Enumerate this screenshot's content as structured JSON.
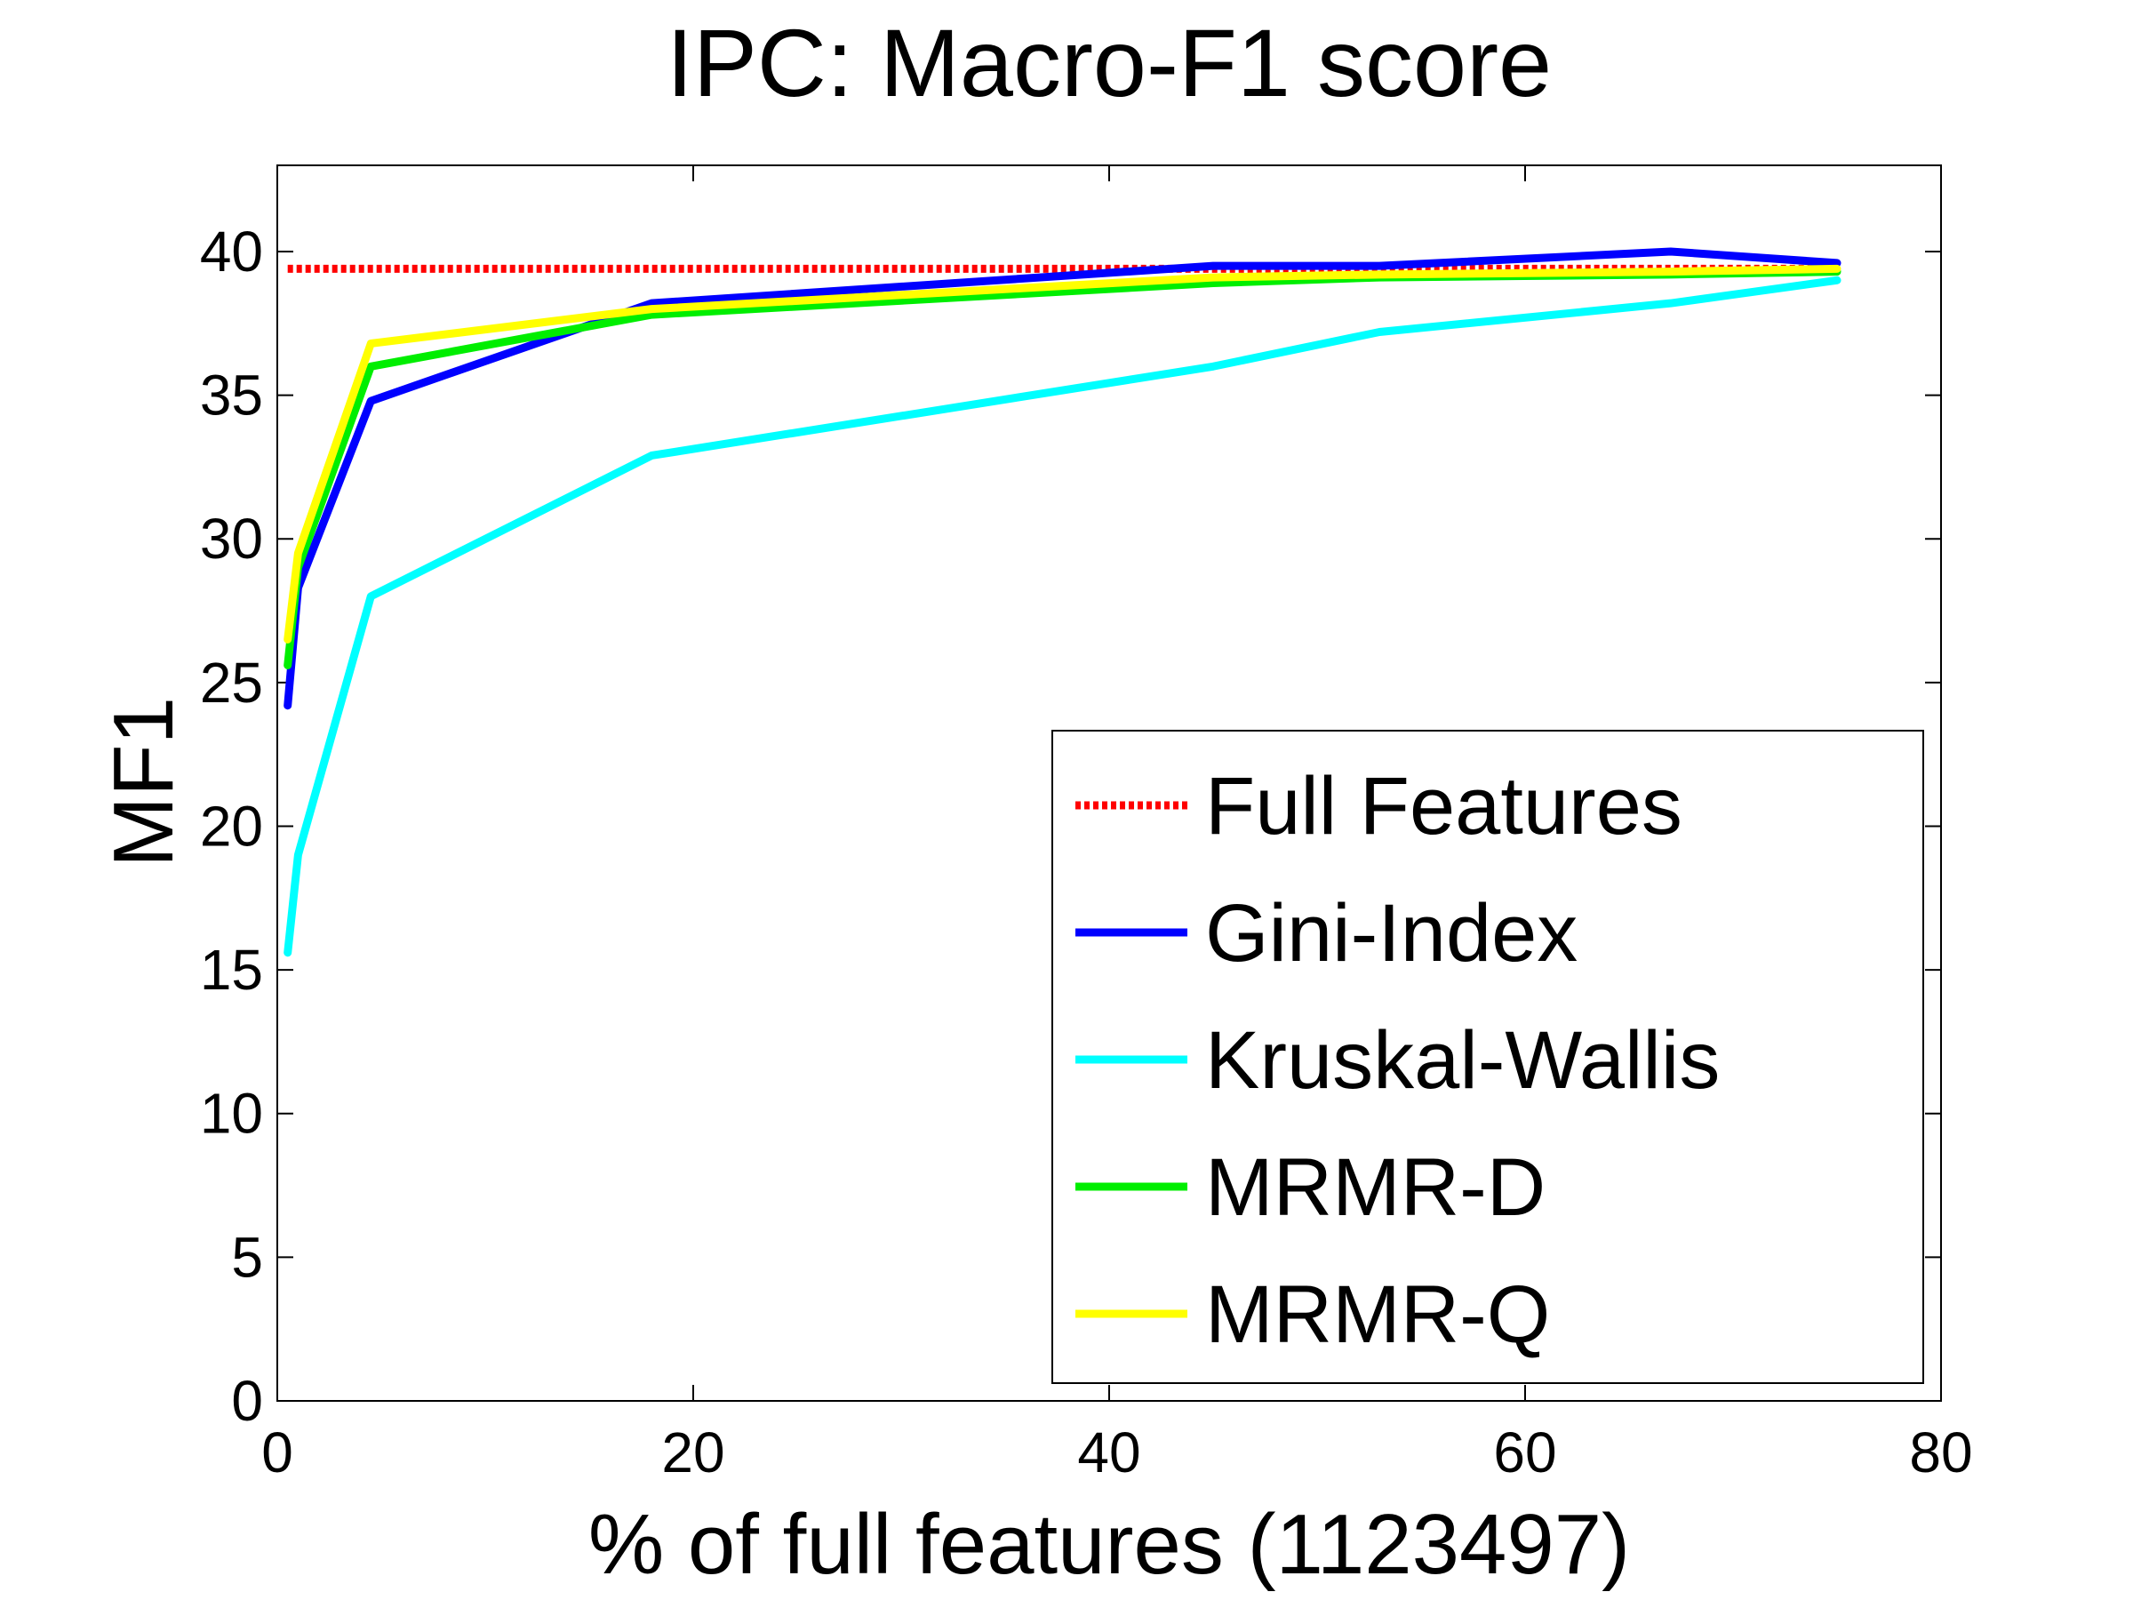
{
  "chart_data": {
    "type": "line",
    "title": "IPC: Macro-F1 score",
    "xlabel": "% of full features (1123497)",
    "ylabel": "MF1",
    "xlim": [
      0,
      80
    ],
    "ylim": [
      0,
      43
    ],
    "xticks": [
      0,
      20,
      40,
      60,
      80
    ],
    "yticks": [
      0,
      5,
      10,
      15,
      20,
      25,
      30,
      35,
      40
    ],
    "grid": false,
    "legend_position": "bottom-right",
    "series": [
      {
        "name": "Full Features",
        "color": "#ff0000",
        "style": "dotted",
        "x": [
          0.5,
          75
        ],
        "y": [
          39.4,
          39.4
        ]
      },
      {
        "name": "Gini-Index",
        "color": "#0000ff",
        "style": "solid",
        "x": [
          0.5,
          1,
          4.5,
          18,
          45,
          53,
          67,
          75
        ],
        "y": [
          24.2,
          28.3,
          34.8,
          38.2,
          39.5,
          39.5,
          40.0,
          39.6
        ]
      },
      {
        "name": "Kruskal-Wallis",
        "color": "#00ffff",
        "style": "solid",
        "x": [
          0.5,
          1,
          4.5,
          18,
          45,
          53,
          67,
          75
        ],
        "y": [
          15.6,
          19.0,
          28.0,
          32.9,
          36.0,
          37.2,
          38.2,
          39.0
        ]
      },
      {
        "name": "MRMR-D",
        "color": "#00ee00",
        "style": "solid",
        "x": [
          0.5,
          1,
          4.5,
          18,
          45,
          53,
          67,
          75
        ],
        "y": [
          25.6,
          29.0,
          36.0,
          37.8,
          38.9,
          39.1,
          39.2,
          39.3
        ]
      },
      {
        "name": "MRMR-Q",
        "color": "#ffff00",
        "style": "solid",
        "x": [
          0.5,
          1,
          4.5,
          18,
          45,
          53,
          67,
          75
        ],
        "y": [
          26.5,
          29.5,
          36.8,
          38.0,
          39.1,
          39.2,
          39.3,
          39.4
        ]
      }
    ]
  }
}
